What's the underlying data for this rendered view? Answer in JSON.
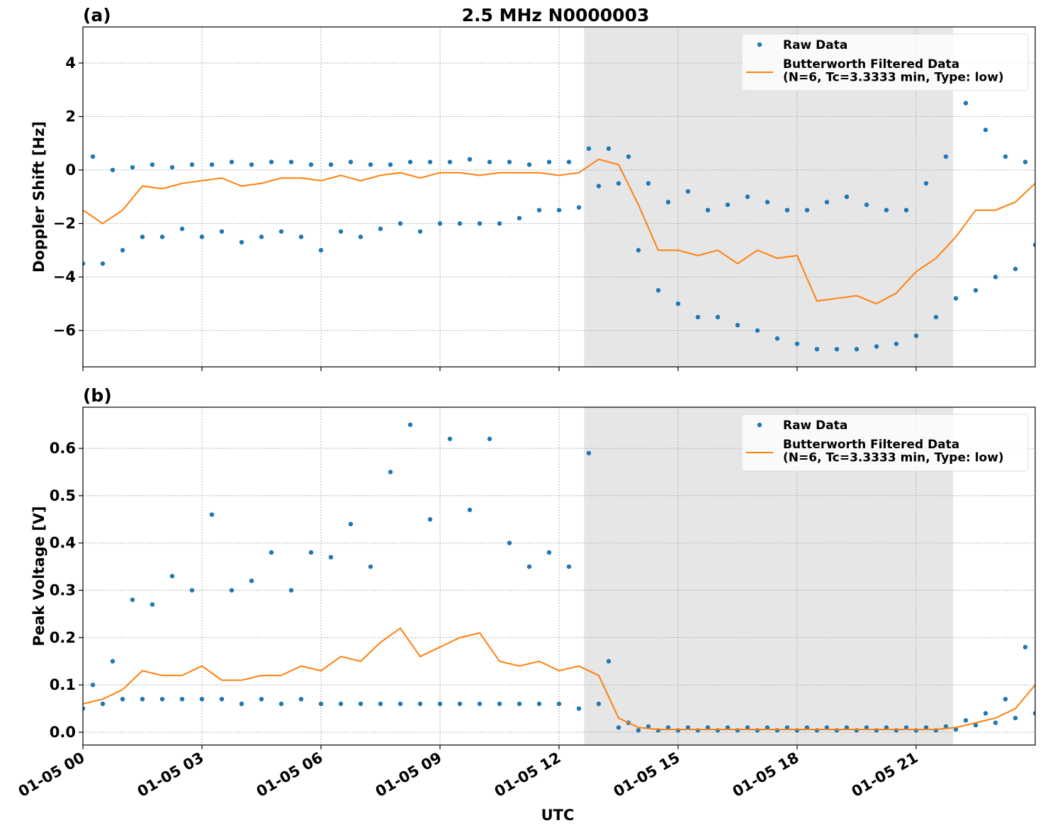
{
  "chart_data": [
    {
      "type": "line",
      "panel_label": "(a)",
      "title": "2.5 MHz N0000003",
      "ylabel": "Doppler Shift [Hz]",
      "xlim": [
        0,
        24
      ],
      "ylim": [
        -7.36,
        5.35
      ],
      "yticks": [
        {
          "value": -6,
          "label": "−6"
        },
        {
          "value": -4,
          "label": "−4"
        },
        {
          "value": -2,
          "label": "−2"
        },
        0,
        2,
        4
      ],
      "grid": true,
      "legend": "upper right",
      "shade": [
        12.63,
        21.93
      ],
      "shade_color": "#e6e6e6",
      "series": [
        {
          "name": "Raw Data",
          "type": "scatter",
          "color": "#1f77b4",
          "x": [
            0,
            0.25,
            0.5,
            0.75,
            1,
            1.25,
            1.5,
            1.75,
            2,
            2.25,
            2.5,
            2.75,
            3,
            3.25,
            3.5,
            3.75,
            4,
            4.25,
            4.5,
            4.75,
            5,
            5.25,
            5.5,
            5.75,
            6,
            6.25,
            6.5,
            6.75,
            7,
            7.25,
            7.5,
            7.75,
            8,
            8.25,
            8.5,
            8.75,
            9,
            9.25,
            9.5,
            9.75,
            10,
            10.25,
            10.5,
            10.75,
            11,
            11.25,
            11.5,
            11.75,
            12,
            12.25,
            12.5,
            12.75,
            13,
            13.25,
            13.5,
            13.75,
            14,
            14.25,
            14.5,
            14.75,
            15,
            15.25,
            15.5,
            15.75,
            16,
            16.25,
            16.5,
            16.75,
            17,
            17.25,
            17.5,
            17.75,
            18,
            18.25,
            18.5,
            18.75,
            19,
            19.25,
            19.5,
            19.75,
            20,
            20.25,
            20.5,
            20.75,
            21,
            21.25,
            21.5,
            21.75,
            22,
            22.25,
            22.5,
            22.75,
            23,
            23.25,
            23.5,
            23.75,
            24
          ],
          "values": [
            -3.5,
            0.5,
            -3.5,
            0,
            -3,
            0.1,
            -2.5,
            0.2,
            -2.5,
            0.1,
            -2.2,
            0.2,
            -2.5,
            0.2,
            -2.3,
            0.3,
            -2.7,
            0.2,
            -2.5,
            0.3,
            -2.3,
            0.3,
            -2.5,
            0.2,
            -3,
            0.2,
            -2.3,
            0.3,
            -2.5,
            0.2,
            -2.2,
            0.2,
            -2,
            0.3,
            -2.3,
            0.3,
            -2,
            0.3,
            -2,
            0.4,
            -2,
            0.3,
            -2,
            0.3,
            -1.8,
            0.2,
            -1.5,
            0.3,
            -1.5,
            0.3,
            -1.4,
            0.8,
            -0.6,
            0.8,
            -0.5,
            0.5,
            -3,
            -0.5,
            -4.5,
            -1.2,
            -5,
            -0.8,
            -5.5,
            -1.5,
            -5.5,
            -1.3,
            -5.8,
            -1.0,
            -6,
            -1.2,
            -6.3,
            -1.5,
            -6.5,
            -1.5,
            -6.7,
            -1.2,
            -6.7,
            -1.0,
            -6.7,
            -1.3,
            -6.6,
            -1.5,
            -6.5,
            -1.5,
            -6.2,
            -0.5,
            -5.5,
            0.5,
            -4.8,
            2.5,
            -4.5,
            1.5,
            -4,
            0.5,
            -3.7,
            0.3,
            -2.8
          ]
        },
        {
          "name": "Butterworth Filtered Data\n(N=6, Tc=3.3333 min, Type: low)",
          "type": "line",
          "color": "#ff7f0e",
          "x": [
            0,
            0.5,
            1,
            1.5,
            2,
            2.5,
            3,
            3.5,
            4,
            4.5,
            5,
            5.5,
            6,
            6.5,
            7,
            7.5,
            8,
            8.5,
            9,
            9.5,
            10,
            10.5,
            11,
            11.5,
            12,
            12.5,
            13,
            13.5,
            14,
            14.5,
            15,
            15.5,
            16,
            16.5,
            17,
            17.5,
            18,
            18.5,
            19,
            19.5,
            20,
            20.5,
            21,
            21.5,
            22,
            22.5,
            23,
            23.5,
            24
          ],
          "values": [
            -1.5,
            -2.0,
            -1.5,
            -0.6,
            -0.7,
            -0.5,
            -0.4,
            -0.3,
            -0.6,
            -0.5,
            -0.3,
            -0.3,
            -0.4,
            -0.2,
            -0.4,
            -0.2,
            -0.1,
            -0.3,
            -0.1,
            -0.1,
            -0.2,
            -0.1,
            -0.1,
            -0.1,
            -0.2,
            -0.1,
            0.4,
            0.2,
            -1.3,
            -3.0,
            -3.0,
            -3.2,
            -3.0,
            -3.5,
            -3.0,
            -3.3,
            -3.2,
            -4.9,
            -4.8,
            -4.7,
            -5.0,
            -4.6,
            -3.8,
            -3.3,
            -2.5,
            -1.5,
            -1.5,
            -1.2,
            -0.5
          ]
        }
      ]
    },
    {
      "type": "line",
      "panel_label": "(b)",
      "xlabel": "UTC",
      "ylabel": "Peak Voltage [V]",
      "xlim": [
        0,
        24
      ],
      "ylim": [
        -0.027,
        0.687
      ],
      "xticks": [
        {
          "value": 0,
          "label": "01-05 00"
        },
        {
          "value": 3,
          "label": "01-05 03"
        },
        {
          "value": 6,
          "label": "01-05 06"
        },
        {
          "value": 9,
          "label": "01-05 09"
        },
        {
          "value": 12,
          "label": "01-05 12"
        },
        {
          "value": 15,
          "label": "01-05 15"
        },
        {
          "value": 18,
          "label": "01-05 18"
        },
        {
          "value": 21,
          "label": "01-05 21"
        }
      ],
      "yticks": [
        {
          "value": 0,
          "label": "0.0"
        },
        0.1,
        0.2,
        0.3,
        0.4,
        0.5,
        0.6
      ],
      "grid": true,
      "legend": "upper right",
      "shade": [
        12.63,
        21.93
      ],
      "shade_color": "#e6e6e6",
      "series": [
        {
          "name": "Raw Data",
          "type": "scatter",
          "color": "#1f77b4",
          "x": [
            0,
            0.25,
            0.5,
            0.75,
            1,
            1.25,
            1.5,
            1.75,
            2,
            2.25,
            2.5,
            2.75,
            3,
            3.25,
            3.5,
            3.75,
            4,
            4.25,
            4.5,
            4.75,
            5,
            5.25,
            5.5,
            5.75,
            6,
            6.25,
            6.5,
            6.75,
            7,
            7.25,
            7.5,
            7.75,
            8,
            8.25,
            8.5,
            8.75,
            9,
            9.25,
            9.5,
            9.75,
            10,
            10.25,
            10.5,
            10.75,
            11,
            11.25,
            11.5,
            11.75,
            12,
            12.25,
            12.5,
            12.75,
            13,
            13.25,
            13.5,
            13.75,
            14,
            14.25,
            14.5,
            14.75,
            15,
            15.25,
            15.5,
            15.75,
            16,
            16.25,
            16.5,
            16.75,
            17,
            17.25,
            17.5,
            17.75,
            18,
            18.25,
            18.5,
            18.75,
            19,
            19.25,
            19.5,
            19.75,
            20,
            20.25,
            20.5,
            20.75,
            21,
            21.25,
            21.5,
            21.75,
            22,
            22.25,
            22.5,
            22.75,
            23,
            23.25,
            23.5,
            23.75,
            24
          ],
          "values": [
            0.05,
            0.1,
            0.06,
            0.15,
            0.07,
            0.28,
            0.07,
            0.27,
            0.07,
            0.33,
            0.07,
            0.3,
            0.07,
            0.46,
            0.07,
            0.3,
            0.06,
            0.32,
            0.07,
            0.38,
            0.06,
            0.3,
            0.07,
            0.38,
            0.06,
            0.37,
            0.06,
            0.44,
            0.06,
            0.35,
            0.06,
            0.55,
            0.06,
            0.65,
            0.06,
            0.45,
            0.06,
            0.62,
            0.06,
            0.47,
            0.06,
            0.62,
            0.06,
            0.4,
            0.06,
            0.35,
            0.06,
            0.38,
            0.06,
            0.35,
            0.05,
            0.59,
            0.06,
            0.15,
            0.01,
            0.02,
            0.004,
            0.012,
            0.004,
            0.01,
            0.004,
            0.01,
            0.004,
            0.01,
            0.004,
            0.01,
            0.004,
            0.01,
            0.004,
            0.01,
            0.004,
            0.01,
            0.004,
            0.01,
            0.004,
            0.01,
            0.004,
            0.01,
            0.004,
            0.01,
            0.004,
            0.01,
            0.004,
            0.01,
            0.004,
            0.01,
            0.004,
            0.012,
            0.006,
            0.025,
            0.015,
            0.04,
            0.02,
            0.07,
            0.03,
            0.18,
            0.04
          ]
        },
        {
          "name": "Butterworth Filtered Data\n(N=6, Tc=3.3333 min, Type: low)",
          "type": "line",
          "color": "#ff7f0e",
          "x": [
            0,
            0.5,
            1,
            1.5,
            2,
            2.5,
            3,
            3.5,
            4,
            4.5,
            5,
            5.5,
            6,
            6.5,
            7,
            7.5,
            8,
            8.5,
            9,
            9.5,
            10,
            10.5,
            11,
            11.5,
            12,
            12.5,
            13,
            13.5,
            14,
            14.5,
            15,
            15.5,
            16,
            16.5,
            17,
            17.5,
            18,
            18.5,
            19,
            19.5,
            20,
            20.5,
            21,
            21.5,
            22,
            22.5,
            23,
            23.5,
            24
          ],
          "values": [
            0.06,
            0.07,
            0.09,
            0.13,
            0.12,
            0.12,
            0.14,
            0.11,
            0.11,
            0.12,
            0.12,
            0.14,
            0.13,
            0.16,
            0.15,
            0.19,
            0.22,
            0.16,
            0.18,
            0.2,
            0.21,
            0.15,
            0.14,
            0.15,
            0.13,
            0.14,
            0.12,
            0.03,
            0.01,
            0.006,
            0.006,
            0.006,
            0.006,
            0.006,
            0.006,
            0.006,
            0.006,
            0.006,
            0.006,
            0.006,
            0.006,
            0.006,
            0.006,
            0.006,
            0.01,
            0.02,
            0.03,
            0.05,
            0.1
          ]
        }
      ]
    }
  ]
}
